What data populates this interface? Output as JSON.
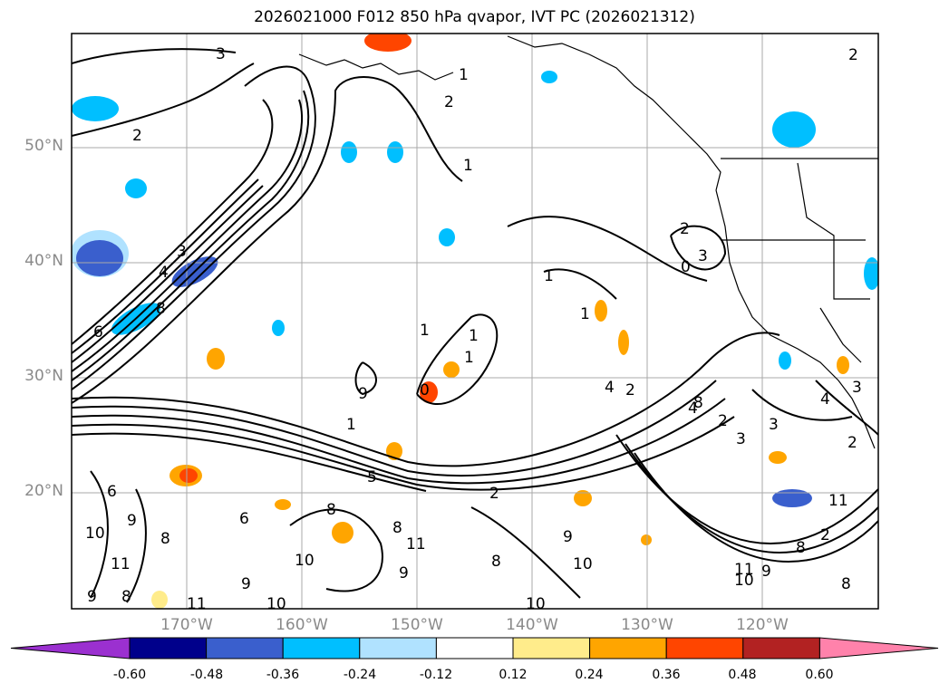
{
  "title": "2026021000 F012 850 hPa qvapor, IVT PC (2026021312)",
  "map": {
    "lat_ticks": [
      "50°N",
      "40°N",
      "30°N",
      "20°N"
    ],
    "lon_ticks": [
      "170°W",
      "160°W",
      "150°W",
      "140°W",
      "130°W",
      "120°W"
    ],
    "contour_labels": [
      "3",
      "2",
      "2",
      "1",
      "2",
      "1",
      "3",
      "4",
      "6",
      "8",
      "2",
      "3",
      "0",
      "1",
      "1",
      "9",
      "1",
      "1",
      "0",
      "1",
      "2",
      "4",
      "4",
      "2",
      "3",
      "3",
      "2",
      "3",
      "4",
      "5",
      "6",
      "9",
      "10",
      "8",
      "6",
      "11",
      "10",
      "8",
      "8",
      "9",
      "11",
      "8",
      "9",
      "10",
      "9",
      "8",
      "10",
      "11",
      "9",
      "8",
      "2",
      "11",
      "8",
      "9",
      "10",
      "11",
      "10",
      "8",
      "1",
      "2"
    ]
  },
  "colorbar": {
    "ticks": [
      "-0.60",
      "-0.48",
      "-0.36",
      "-0.24",
      "-0.12",
      "0.12",
      "0.24",
      "0.36",
      "0.48",
      "0.60"
    ],
    "colors": [
      "#9b30d0",
      "#00008b",
      "#3a5fcd",
      "#00bfff",
      "#b0e2ff",
      "#ffffff",
      "#ffec8b",
      "#ffa500",
      "#ff4500",
      "#b22222",
      "#ff82ab"
    ]
  }
}
